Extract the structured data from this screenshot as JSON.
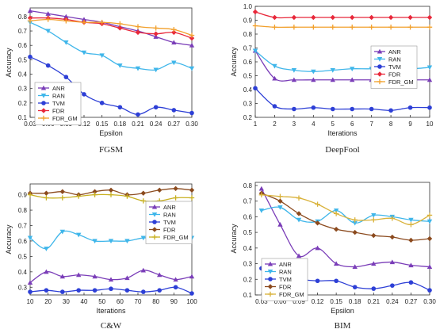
{
  "chart_data": [
    {
      "type": "line",
      "caption": "FGSM",
      "xlabel": "Epsilon",
      "ylabel": "Accuracy",
      "xlim": [
        0.03,
        0.3
      ],
      "ylim": [
        0.1,
        0.86
      ],
      "xticks": [
        0.03,
        0.06,
        0.09,
        0.12,
        0.15,
        0.18,
        0.21,
        0.24,
        0.27,
        0.3
      ],
      "xtick_labels": [
        "0.03",
        "0.06",
        "0.09",
        "0.12",
        "0.15",
        "0.18",
        "0.21",
        "0.24",
        "0.27",
        "0.30"
      ],
      "yticks": [
        0.1,
        0.2,
        0.3,
        0.4,
        0.5,
        0.6,
        0.7,
        0.8
      ],
      "ytick_labels": [
        "0.1",
        "0.2",
        "0.3",
        "0.4",
        "0.5",
        "0.6",
        "0.7",
        "0.8"
      ],
      "legend": "bottom-left",
      "x": [
        0.03,
        0.06,
        0.09,
        0.12,
        0.15,
        0.18,
        0.21,
        0.24,
        0.27,
        0.3
      ],
      "series": [
        {
          "name": "ANR",
          "color": "#7a3db8",
          "marker": "triangle",
          "values": [
            0.84,
            0.82,
            0.8,
            0.78,
            0.76,
            0.73,
            0.7,
            0.66,
            0.62,
            0.6
          ]
        },
        {
          "name": "RAN",
          "color": "#3fb6ea",
          "marker": "triangle-down",
          "values": [
            0.76,
            0.7,
            0.62,
            0.55,
            0.53,
            0.46,
            0.44,
            0.43,
            0.48,
            0.44
          ]
        },
        {
          "name": "TVM",
          "color": "#2d3fd6",
          "marker": "circle",
          "values": [
            0.52,
            0.46,
            0.38,
            0.26,
            0.2,
            0.17,
            0.12,
            0.17,
            0.15,
            0.13
          ]
        },
        {
          "name": "FDR",
          "color": "#e8283a",
          "marker": "diamond",
          "values": [
            0.79,
            0.79,
            0.78,
            0.76,
            0.75,
            0.72,
            0.69,
            0.68,
            0.69,
            0.65
          ]
        },
        {
          "name": "FDR_GM",
          "color": "#f2a02c",
          "marker": "cross",
          "values": [
            0.77,
            0.78,
            0.77,
            0.76,
            0.76,
            0.75,
            0.73,
            0.72,
            0.71,
            0.67
          ]
        }
      ]
    },
    {
      "type": "line",
      "caption": "DeepFool",
      "xlabel": "Iterations",
      "ylabel": "Accuracy",
      "xlim": [
        1,
        10
      ],
      "ylim": [
        0.2,
        1.0
      ],
      "xticks": [
        1,
        2,
        3,
        4,
        5,
        6,
        7,
        8,
        9,
        10
      ],
      "xtick_labels": [
        "1",
        "2",
        "3",
        "4",
        "5",
        "6",
        "7",
        "8",
        "9",
        "10"
      ],
      "yticks": [
        0.2,
        0.3,
        0.4,
        0.5,
        0.6,
        0.7,
        0.8,
        0.9,
        1.0
      ],
      "ytick_labels": [
        "0.2",
        "0.3",
        "0.4",
        "0.5",
        "0.6",
        "0.7",
        "0.8",
        "0.9",
        "1.0"
      ],
      "legend": "center-right",
      "x": [
        1,
        2,
        3,
        4,
        5,
        6,
        7,
        8,
        9,
        10
      ],
      "series": [
        {
          "name": "ANR",
          "color": "#7a3db8",
          "marker": "triangle",
          "values": [
            0.68,
            0.48,
            0.47,
            0.47,
            0.47,
            0.47,
            0.47,
            0.47,
            0.47,
            0.47
          ]
        },
        {
          "name": "RAN",
          "color": "#3fb6ea",
          "marker": "triangle-down",
          "values": [
            0.68,
            0.57,
            0.54,
            0.53,
            0.54,
            0.55,
            0.55,
            0.56,
            0.55,
            0.56
          ]
        },
        {
          "name": "TVM",
          "color": "#2d3fd6",
          "marker": "circle",
          "values": [
            0.41,
            0.28,
            0.26,
            0.27,
            0.26,
            0.26,
            0.26,
            0.25,
            0.27,
            0.27
          ]
        },
        {
          "name": "FDR",
          "color": "#e8283a",
          "marker": "diamond",
          "values": [
            0.96,
            0.92,
            0.92,
            0.92,
            0.92,
            0.92,
            0.92,
            0.92,
            0.92,
            0.92
          ]
        },
        {
          "name": "FDR_GM",
          "color": "#f2a02c",
          "marker": "cross",
          "values": [
            0.86,
            0.85,
            0.85,
            0.85,
            0.85,
            0.85,
            0.85,
            0.85,
            0.85,
            0.85
          ]
        }
      ]
    },
    {
      "type": "line",
      "caption": "C&W",
      "xlabel": "Iterations",
      "ylabel": "Accuracy",
      "xlim": [
        10,
        100
      ],
      "ylim": [
        0.25,
        0.97
      ],
      "xticks": [
        10,
        20,
        30,
        40,
        50,
        60,
        70,
        80,
        90,
        100
      ],
      "xtick_labels": [
        "10",
        "20",
        "30",
        "40",
        "50",
        "60",
        "70",
        "80",
        "90",
        "100"
      ],
      "yticks": [
        0.3,
        0.4,
        0.5,
        0.6,
        0.7,
        0.8,
        0.9
      ],
      "ytick_labels": [
        "0.3",
        "0.4",
        "0.5",
        "0.6",
        "0.7",
        "0.8",
        "0.9"
      ],
      "legend": "center-right",
      "x": [
        10,
        19,
        28,
        37,
        46,
        55,
        64,
        73,
        82,
        91,
        100
      ],
      "series": [
        {
          "name": "ANR",
          "color": "#7a3db8",
          "marker": "triangle",
          "values": [
            0.33,
            0.4,
            0.37,
            0.38,
            0.37,
            0.35,
            0.36,
            0.41,
            0.38,
            0.35,
            0.37
          ]
        },
        {
          "name": "RAN",
          "color": "#3fb6ea",
          "marker": "triangle-down",
          "values": [
            0.62,
            0.55,
            0.66,
            0.64,
            0.6,
            0.6,
            0.6,
            0.62,
            0.62,
            0.62,
            0.62
          ]
        },
        {
          "name": "TVM",
          "color": "#2d3fd6",
          "marker": "circle",
          "values": [
            0.27,
            0.28,
            0.27,
            0.28,
            0.28,
            0.29,
            0.28,
            0.27,
            0.28,
            0.3,
            0.26
          ]
        },
        {
          "name": "FDR",
          "color": "#8b4a1e",
          "marker": "diamond",
          "values": [
            0.91,
            0.91,
            0.92,
            0.9,
            0.92,
            0.93,
            0.9,
            0.91,
            0.93,
            0.94,
            0.93
          ]
        },
        {
          "name": "FDR_GM",
          "color": "#c8b020",
          "marker": "cross",
          "values": [
            0.9,
            0.88,
            0.88,
            0.89,
            0.9,
            0.9,
            0.89,
            0.86,
            0.86,
            0.88,
            0.88
          ]
        }
      ]
    },
    {
      "type": "line",
      "caption": "BIM",
      "xlabel": "Epsilon",
      "ylabel": "Accuracy",
      "xlim": [
        0.02,
        0.3
      ],
      "ylim": [
        0.1,
        0.82
      ],
      "xticks": [
        0.03,
        0.06,
        0.09,
        0.12,
        0.15,
        0.18,
        0.21,
        0.24,
        0.27,
        0.3
      ],
      "xtick_labels": [
        "0.03",
        "0.06",
        "0.09",
        "0.12",
        "0.15",
        "0.18",
        "0.21",
        "0.24",
        "0.27",
        "0.30"
      ],
      "yticks": [
        0.1,
        0.2,
        0.3,
        0.4,
        0.5,
        0.6,
        0.7,
        0.8
      ],
      "ytick_labels": [
        "0.1",
        "0.2",
        "0.3",
        "0.4",
        "0.5",
        "0.6",
        "0.7",
        "0.8"
      ],
      "legend": "bottom-left",
      "x": [
        0.03,
        0.06,
        0.09,
        0.12,
        0.15,
        0.18,
        0.21,
        0.24,
        0.27,
        0.3
      ],
      "series": [
        {
          "name": "ANR",
          "color": "#7a3db8",
          "marker": "triangle",
          "values": [
            0.78,
            0.55,
            0.35,
            0.4,
            0.3,
            0.28,
            0.3,
            0.31,
            0.29,
            0.28
          ]
        },
        {
          "name": "RAN",
          "color": "#3fb6ea",
          "marker": "triangle-down",
          "values": [
            0.64,
            0.66,
            0.58,
            0.57,
            0.64,
            0.56,
            0.61,
            0.6,
            0.58,
            0.57
          ]
        },
        {
          "name": "TVM",
          "color": "#2d3fd6",
          "marker": "circle",
          "values": [
            0.27,
            0.22,
            0.2,
            0.19,
            0.19,
            0.15,
            0.14,
            0.16,
            0.18,
            0.13
          ]
        },
        {
          "name": "FDR",
          "color": "#8b4a1e",
          "marker": "diamond",
          "values": [
            0.75,
            0.7,
            0.62,
            0.56,
            0.52,
            0.5,
            0.48,
            0.47,
            0.45,
            0.46
          ]
        },
        {
          "name": "FDR_GM",
          "color": "#d9b23a",
          "marker": "cross",
          "values": [
            0.74,
            0.73,
            0.72,
            0.68,
            0.62,
            0.58,
            0.58,
            0.59,
            0.55,
            0.61
          ]
        }
      ]
    }
  ]
}
